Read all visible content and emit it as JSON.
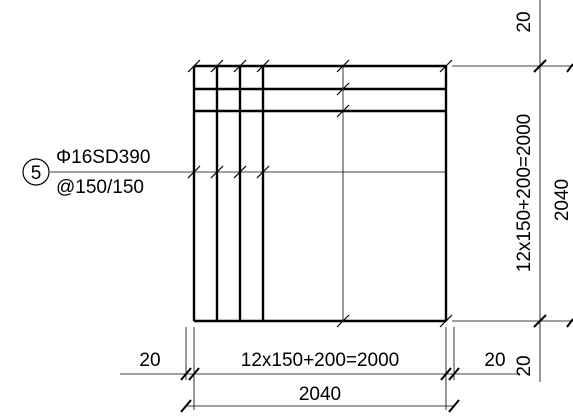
{
  "callout": {
    "mark": "5",
    "bar_spec": "Φ16SD390",
    "spacing": "@150/150"
  },
  "dimensions": {
    "bottom": {
      "left_edge": "20",
      "span": "12x150+200=2000",
      "right_edge": "20",
      "overall": "2040"
    },
    "right": {
      "top_edge": "20",
      "span": "12x150+200=2000",
      "bottom_edge": "20",
      "overall": "2040"
    }
  },
  "colors": {
    "line": "#000000",
    "background": "#ffffff"
  }
}
